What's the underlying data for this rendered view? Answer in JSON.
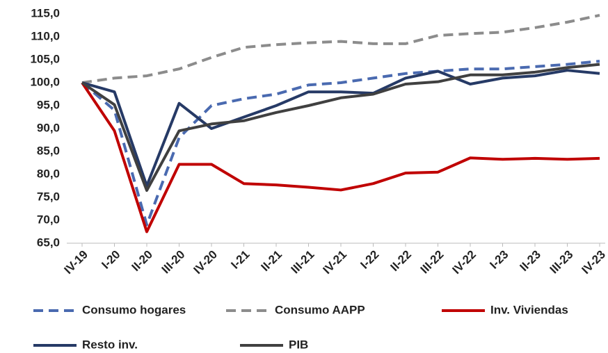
{
  "chart_data": {
    "type": "line",
    "categories": [
      "IV-19",
      "I-20",
      "II-20",
      "III-20",
      "IV-20",
      "I-21",
      "II-21",
      "III-21",
      "IV-21",
      "I-22",
      "II-22",
      "III-22",
      "IV-22",
      "I-23",
      "II-23",
      "III-23",
      "IV-23"
    ],
    "series": [
      {
        "name": "Consumo hogares",
        "color": "#4a6ab0",
        "dash": true,
        "values": [
          100,
          94,
          69,
          88,
          95,
          96.5,
          97.5,
          99.5,
          100,
          101,
          102,
          102.5,
          103,
          103,
          103.5,
          104,
          104.7
        ]
      },
      {
        "name": "Consumo AAPP",
        "color": "#8c8c8c",
        "dash": true,
        "values": [
          100,
          101,
          101.5,
          103,
          105.5,
          107.7,
          108.3,
          108.7,
          109,
          108.5,
          108.5,
          110.3,
          110.7,
          111,
          112,
          113.2,
          114.7
        ]
      },
      {
        "name": "Inv. Viviendas",
        "color": "#c00000",
        "dash": false,
        "values": [
          100,
          89.5,
          67.5,
          82.2,
          82.2,
          78,
          77.7,
          77.2,
          76.6,
          78,
          80.3,
          80.5,
          83.6,
          83.3,
          83.5,
          83.3,
          83.5
        ]
      },
      {
        "name": "Resto inv.",
        "color": "#263a66",
        "dash": false,
        "values": [
          100,
          98,
          77.5,
          95.5,
          90,
          92.5,
          95,
          98,
          98,
          97.7,
          101,
          102.5,
          99.7,
          101,
          101.5,
          102.7,
          102
        ]
      },
      {
        "name": "PIB",
        "color": "#404040",
        "dash": false,
        "values": [
          100,
          95.2,
          76.5,
          89.5,
          91,
          91.7,
          93.5,
          95,
          96.7,
          97.5,
          99.7,
          100.2,
          101.7,
          101.7,
          102.3,
          103.3,
          104
        ]
      }
    ],
    "ylim": [
      65,
      115
    ],
    "yticks": [
      {
        "value": 65,
        "label": "65,0"
      },
      {
        "value": 70,
        "label": "70,0"
      },
      {
        "value": 75,
        "label": "75,0"
      },
      {
        "value": 80,
        "label": "80,0"
      },
      {
        "value": 85,
        "label": "85,0"
      },
      {
        "value": 90,
        "label": "90,0"
      },
      {
        "value": 95,
        "label": "95,0"
      },
      {
        "value": 100,
        "label": "100,0"
      },
      {
        "value": 105,
        "label": "105,0"
      },
      {
        "value": 110,
        "label": "110,0"
      },
      {
        "value": 115,
        "label": "115,0"
      }
    ],
    "grid": false
  }
}
